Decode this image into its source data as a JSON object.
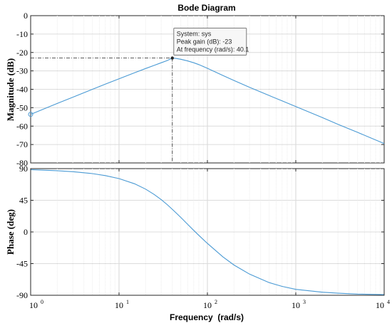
{
  "chart_data": {
    "type": "line",
    "title": "Bode Diagram",
    "xlabel": "Frequency  (rad/s)",
    "xscale": "log",
    "xlim": [
      1,
      10000
    ],
    "x_ticks": [
      {
        "base": "10",
        "exp": "0"
      },
      {
        "base": "10",
        "exp": "1"
      },
      {
        "base": "10",
        "exp": "2"
      },
      {
        "base": "10",
        "exp": "3"
      },
      {
        "base": "10",
        "exp": "4"
      }
    ],
    "grid": true,
    "line_color": "#4a9ad4",
    "panels": [
      {
        "name": "magnitude",
        "ylabel": "Magnitude (dB)",
        "ylim": [
          -80,
          0
        ],
        "y_ticks": [
          0,
          -10,
          -20,
          -30,
          -40,
          -50,
          -60,
          -70,
          -80
        ],
        "x": [
          1,
          2,
          3,
          5,
          7,
          10,
          15,
          20,
          25,
          30,
          35,
          40.1,
          45,
          50,
          60,
          70,
          80,
          100,
          150,
          200,
          300,
          500,
          700,
          1000,
          2000,
          3000,
          5000,
          10000
        ],
        "values": [
          -53.6,
          -47.7,
          -44.3,
          -40.0,
          -37.2,
          -34.3,
          -31.0,
          -28.7,
          -27.0,
          -25.6,
          -24.4,
          -23.0,
          -23.3,
          -23.7,
          -24.6,
          -25.6,
          -26.6,
          -28.6,
          -32.5,
          -35.2,
          -38.9,
          -43.4,
          -46.3,
          -49.4,
          -55.4,
          -59.0,
          -63.4,
          -69.5
        ]
      },
      {
        "name": "phase",
        "ylabel": "Phase (deg)",
        "ylim": [
          -90,
          90
        ],
        "y_ticks": [
          90,
          45,
          0,
          -45,
          -90
        ],
        "x": [
          1,
          2,
          3,
          5,
          7,
          10,
          15,
          20,
          25,
          30,
          35,
          40,
          45,
          50,
          60,
          70,
          80,
          100,
          150,
          200,
          300,
          500,
          700,
          1000,
          2000,
          3000,
          5000,
          10000
        ],
        "values": [
          88.6,
          87.1,
          85.7,
          82.9,
          80.1,
          75.8,
          68.5,
          60.9,
          53.3,
          45.9,
          38.9,
          32.3,
          26.2,
          20.6,
          10.6,
          2.2,
          -4.9,
          -16.3,
          -35.5,
          -47.0,
          -60.0,
          -72.0,
          -77.4,
          -81.6,
          -85.7,
          -87.1,
          -88.3,
          -89.1
        ]
      }
    ],
    "datatip": {
      "x": 40.1,
      "y": -23,
      "lines": [
        "System: sys",
        "Peak gain (dB): -23",
        "At frequency (rad/s): 40.1"
      ]
    }
  }
}
